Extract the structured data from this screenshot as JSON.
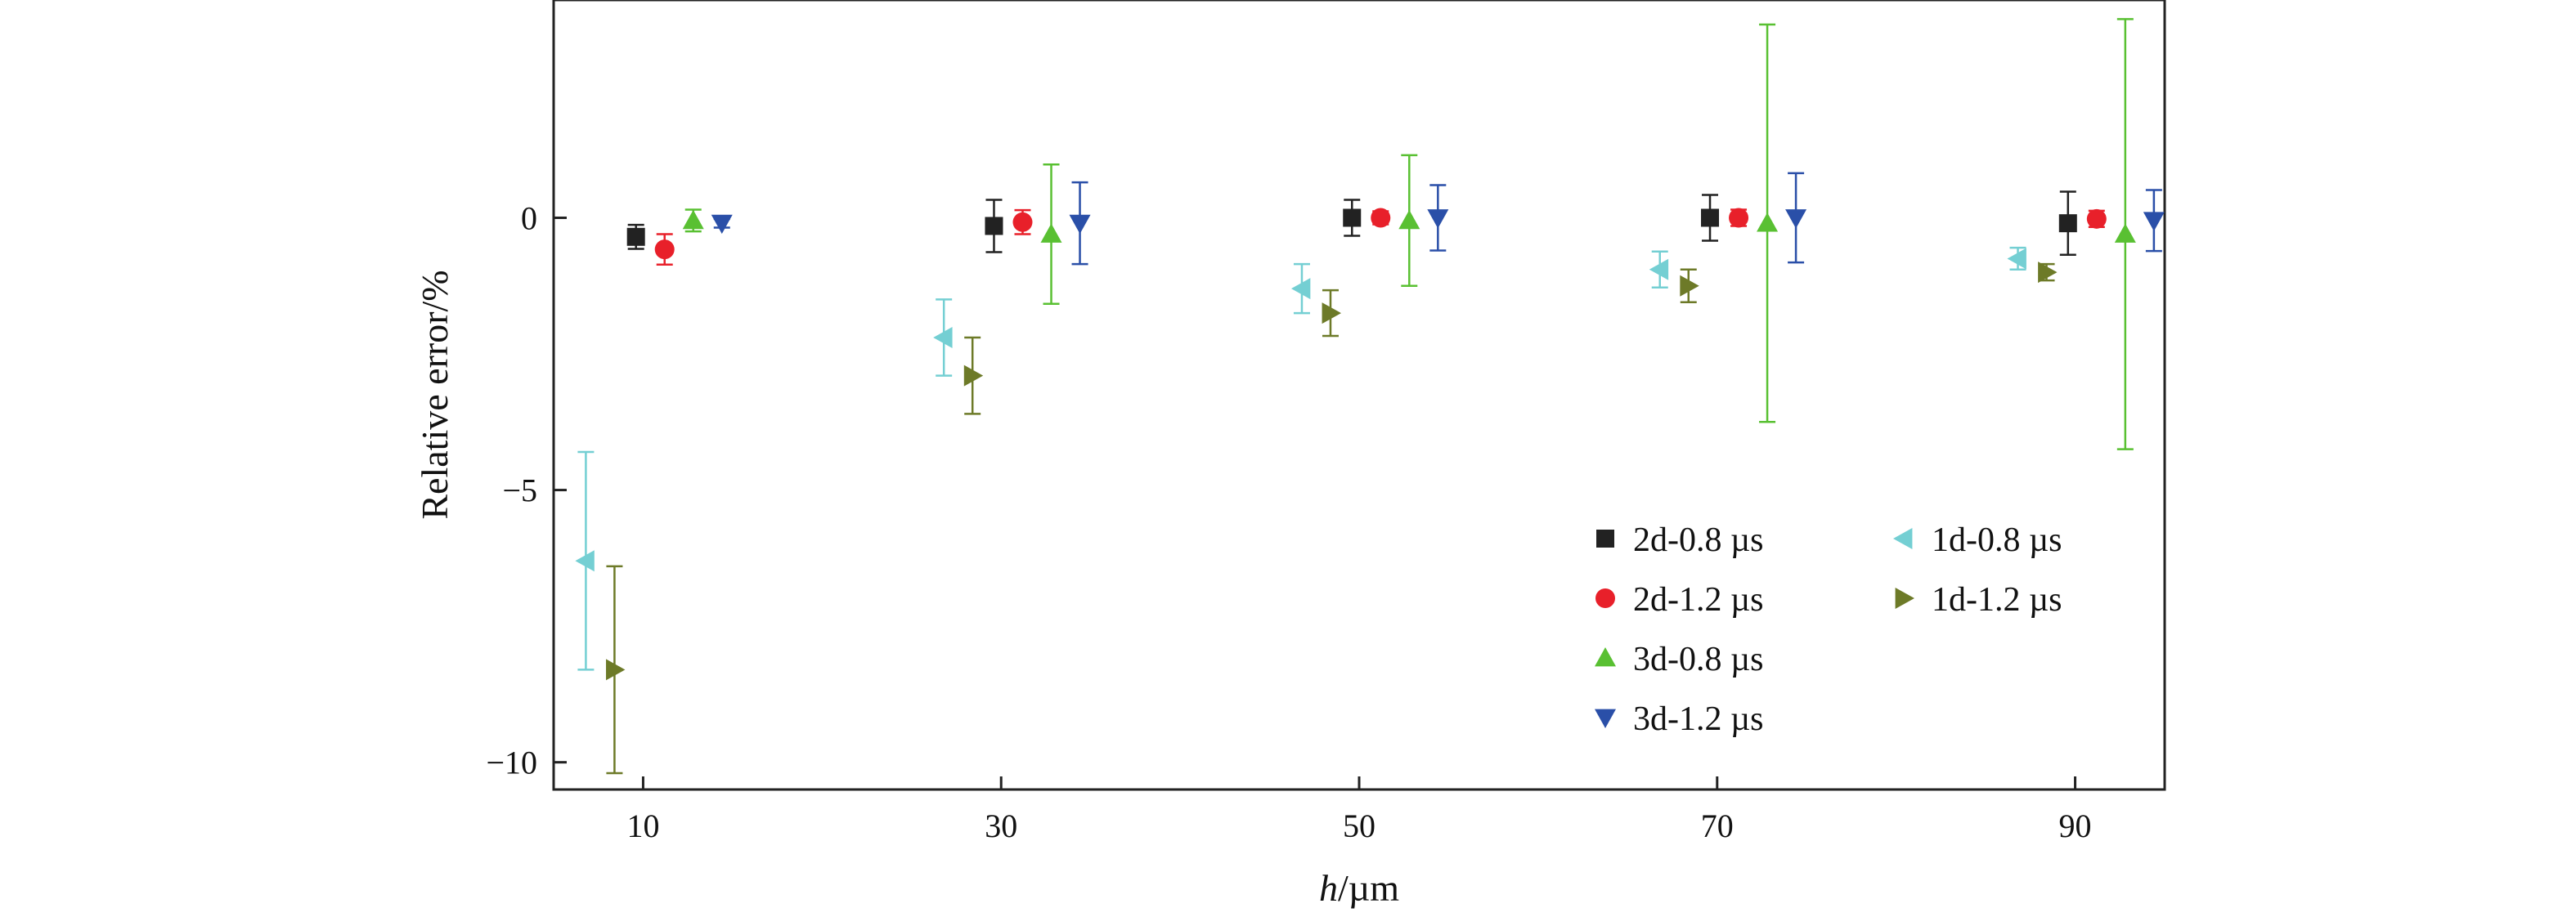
{
  "chart_data": {
    "type": "scatter",
    "xlabel_italic": "h",
    "xlabel_rest": "/µm",
    "ylabel": "Relative error/%",
    "xlim": [
      5,
      95
    ],
    "ylim": [
      -10.5,
      4
    ],
    "x_ticks": [
      10,
      30,
      50,
      70,
      90
    ],
    "y_ticks": [
      -10,
      -5,
      0
    ],
    "y_tick_labels": [
      "−10",
      "−5",
      "0"
    ],
    "error_bars": true,
    "legend_position": "lower-right",
    "series": [
      {
        "name": "2d-0.8 µs",
        "marker": "square",
        "color": "#222222",
        "points": [
          {
            "x": 9.6,
            "y": -0.35,
            "err": 0.22
          },
          {
            "x": 29.6,
            "y": -0.15,
            "err": 0.48
          },
          {
            "x": 49.6,
            "y": 0.0,
            "err": 0.33
          },
          {
            "x": 69.6,
            "y": 0.0,
            "err": 0.42
          },
          {
            "x": 89.6,
            "y": -0.1,
            "err": 0.58
          }
        ]
      },
      {
        "name": "2d-1.2 µs",
        "marker": "circle",
        "color": "#e8202a",
        "points": [
          {
            "x": 11.2,
            "y": -0.58,
            "err": 0.28
          },
          {
            "x": 31.2,
            "y": -0.08,
            "err": 0.22
          },
          {
            "x": 51.2,
            "y": 0.0,
            "err": 0.12
          },
          {
            "x": 71.2,
            "y": 0.0,
            "err": 0.15
          },
          {
            "x": 91.2,
            "y": -0.02,
            "err": 0.15
          }
        ]
      },
      {
        "name": "3d-0.8 µs",
        "marker": "triangle-up",
        "color": "#59c032",
        "points": [
          {
            "x": 12.8,
            "y": -0.05,
            "err": 0.2
          },
          {
            "x": 32.8,
            "y": -0.3,
            "err": 1.28
          },
          {
            "x": 52.8,
            "y": -0.05,
            "err": 1.2
          },
          {
            "x": 72.8,
            "y": -0.1,
            "err": 3.65
          },
          {
            "x": 92.8,
            "y": -0.3,
            "err": 3.95
          }
        ]
      },
      {
        "name": "3d-1.2 µs",
        "marker": "triangle-down",
        "color": "#2a4fa8",
        "points": [
          {
            "x": 14.4,
            "y": -0.1,
            "err": 0.08
          },
          {
            "x": 34.4,
            "y": -0.1,
            "err": 0.75
          },
          {
            "x": 54.4,
            "y": 0.0,
            "err": 0.6
          },
          {
            "x": 74.4,
            "y": 0.0,
            "err": 0.82
          },
          {
            "x": 94.4,
            "y": -0.05,
            "err": 0.56
          }
        ]
      },
      {
        "name": "1d-0.8 µs",
        "marker": "triangle-left",
        "color": "#74cfd3",
        "points": [
          {
            "x": 6.8,
            "y": -6.3,
            "err": 2.0
          },
          {
            "x": 26.8,
            "y": -2.2,
            "err": 0.7
          },
          {
            "x": 46.8,
            "y": -1.3,
            "err": 0.45
          },
          {
            "x": 66.8,
            "y": -0.95,
            "err": 0.33
          },
          {
            "x": 86.8,
            "y": -0.75,
            "err": 0.2
          }
        ]
      },
      {
        "name": "1d-1.2 µs",
        "marker": "triangle-right",
        "color": "#6d7a28",
        "points": [
          {
            "x": 8.4,
            "y": -8.3,
            "err": 1.9
          },
          {
            "x": 28.4,
            "y": -2.9,
            "err": 0.7
          },
          {
            "x": 48.4,
            "y": -1.75,
            "err": 0.42
          },
          {
            "x": 68.4,
            "y": -1.25,
            "err": 0.3
          },
          {
            "x": 88.4,
            "y": -1.0,
            "err": 0.15
          }
        ]
      }
    ]
  }
}
